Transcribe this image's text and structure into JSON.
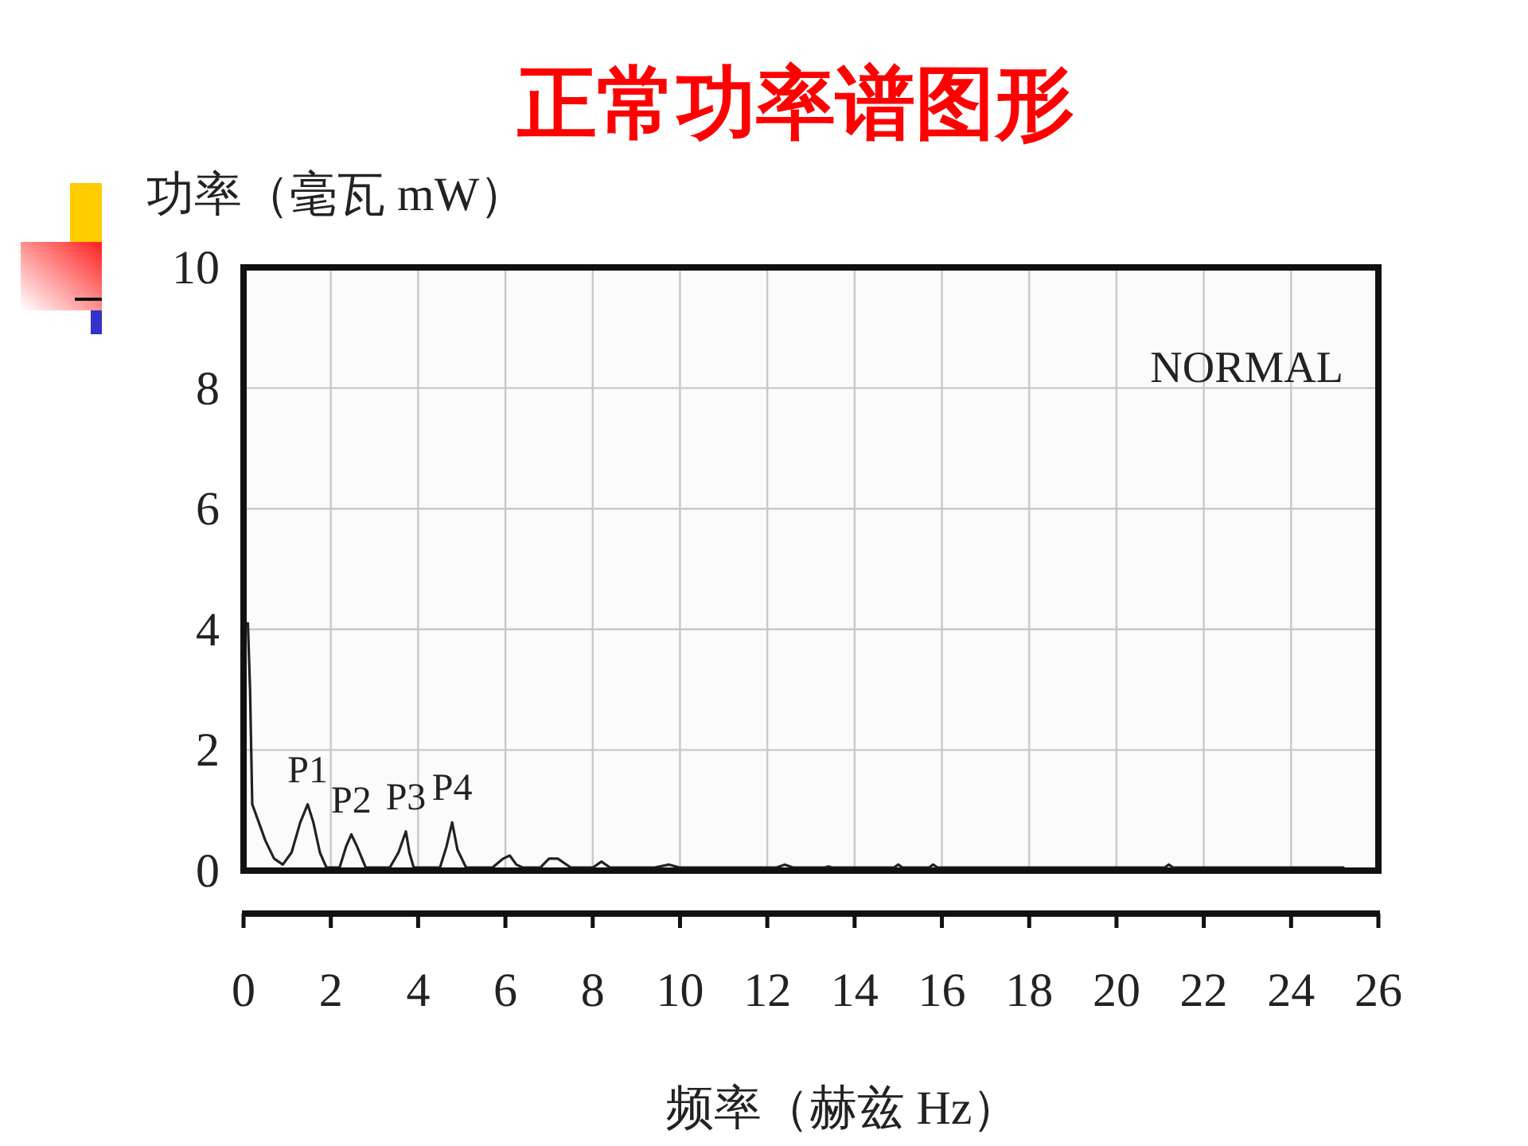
{
  "chart_data": {
    "type": "line",
    "title": "正常功率谱图形",
    "xlabel": "频率（赫兹 Hz）",
    "ylabel": "功率（毫瓦 mW）",
    "xlim": [
      0,
      26
    ],
    "xticks": [
      0,
      2,
      4,
      6,
      8,
      10,
      12,
      14,
      16,
      18,
      20,
      22,
      24,
      26
    ],
    "ylim": [
      0,
      10
    ],
    "yticks": [
      0,
      2,
      4,
      6,
      8,
      10
    ],
    "grid": true,
    "series": [
      {
        "color": "#222222",
        "x": [
          0.1,
          0.15,
          0.2,
          0.35,
          0.5,
          0.7,
          0.9,
          1.1,
          1.3,
          1.47,
          1.6,
          1.75,
          1.9,
          2.2,
          2.35,
          2.47,
          2.6,
          2.8,
          3.35,
          3.55,
          3.72,
          3.8,
          3.9,
          4.5,
          4.65,
          4.78,
          4.9,
          5.1,
          5.7,
          5.95,
          6.1,
          6.25,
          6.4,
          6.8,
          7.0,
          7.2,
          7.5,
          8.0,
          8.2,
          8.4,
          9.4,
          9.75,
          10.0,
          12.2,
          12.4,
          12.6,
          13.3,
          13.4,
          13.5,
          14.9,
          15.0,
          15.1,
          15.7,
          15.8,
          15.9,
          21.1,
          21.2,
          21.3,
          25.2
        ],
        "values": [
          4.1,
          3.0,
          1.1,
          0.8,
          0.5,
          0.2,
          0.1,
          0.3,
          0.8,
          1.1,
          0.8,
          0.3,
          0.05,
          0.05,
          0.4,
          0.6,
          0.4,
          0.05,
          0.05,
          0.3,
          0.65,
          0.3,
          0.05,
          0.05,
          0.4,
          0.8,
          0.35,
          0.05,
          0.05,
          0.2,
          0.25,
          0.1,
          0.05,
          0.05,
          0.2,
          0.2,
          0.05,
          0.05,
          0.15,
          0.05,
          0.05,
          0.1,
          0.05,
          0.05,
          0.1,
          0.05,
          0.05,
          0.07,
          0.05,
          0.05,
          0.1,
          0.05,
          0.05,
          0.1,
          0.05,
          0.05,
          0.1,
          0.05,
          0.05
        ]
      }
    ],
    "annotations": [
      "NORMAL",
      {
        "text": "P1",
        "x": 1.47,
        "y": 1.1
      },
      {
        "text": "P2",
        "x": 2.47,
        "y": 0.6
      },
      {
        "text": "P3",
        "x": 3.72,
        "y": 0.65
      },
      {
        "text": "P4",
        "x": 4.78,
        "y": 0.8
      }
    ]
  }
}
